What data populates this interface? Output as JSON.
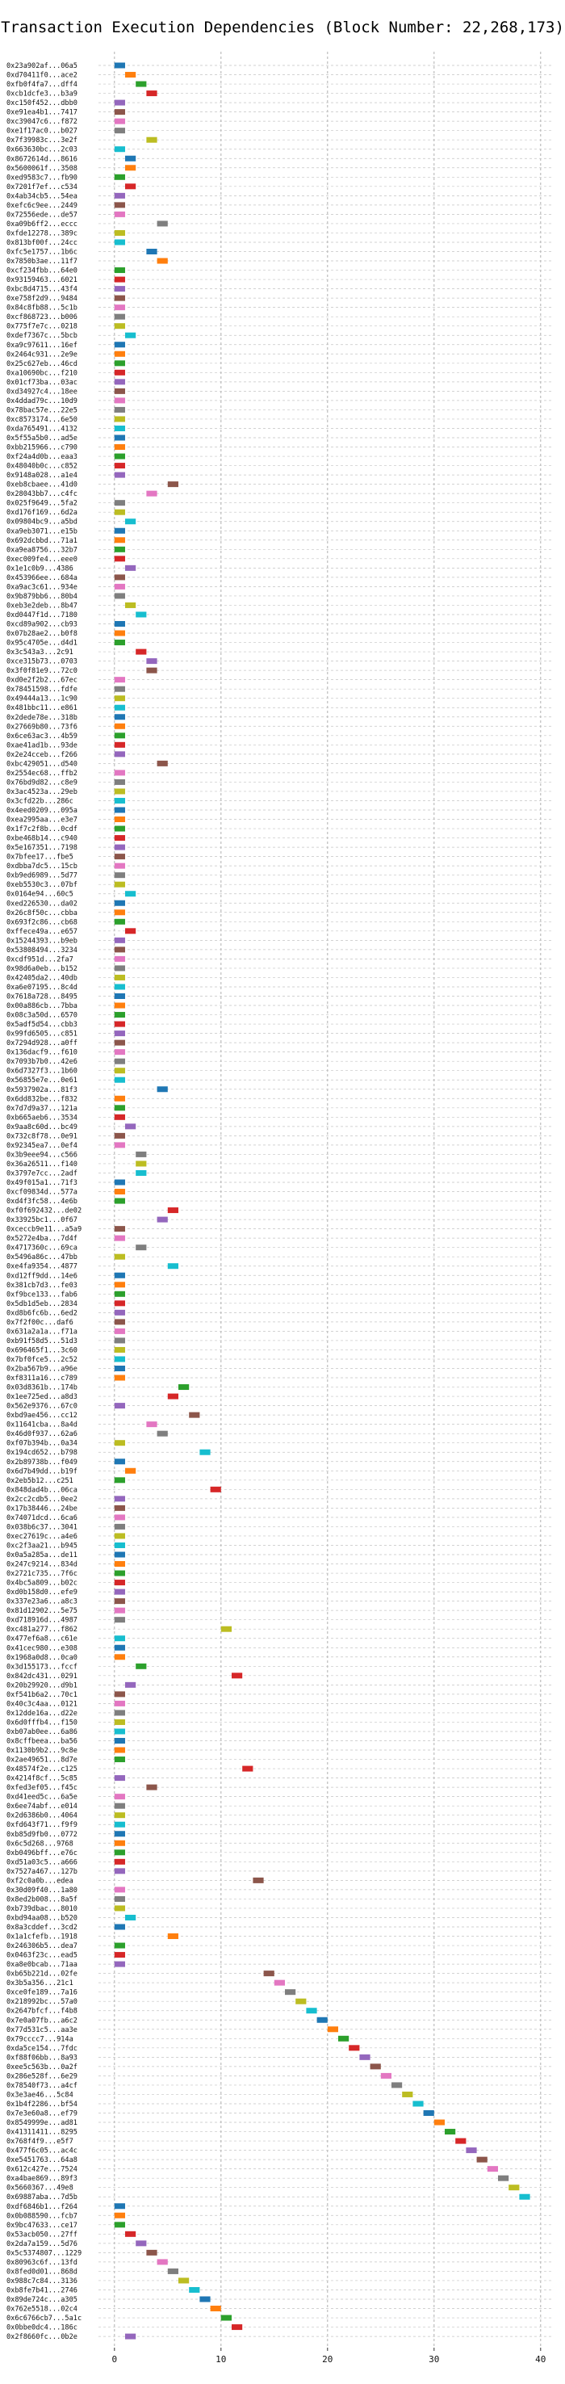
{
  "chart_data": {
    "type": "bar",
    "orientation": "horizontal",
    "title": "Transaction Execution Dependencies (Block Number: 22,268,173)",
    "xlabel": "",
    "ylabel": "",
    "xlim": [
      -1.5,
      41
    ],
    "x_ticks": [
      0,
      10,
      20,
      30,
      40
    ],
    "grid": true,
    "bar_width": 1,
    "palette": [
      "#1f77b4",
      "#ff7f0e",
      "#2ca02c",
      "#d62728",
      "#9467bd",
      "#8c564b",
      "#e377c2",
      "#7f7f7f",
      "#bcbd22",
      "#17becf"
    ],
    "categories": [
      "0x23a902af...06a5",
      "0xd70411f0...ace2",
      "0xfb0f4fa7...dff4",
      "0xcb1dcfe3...b3a9",
      "0xc150f452...dbb0",
      "0xe91ea4b1...7417",
      "0xc39047c6...f872",
      "0xe1f17ac0...b027",
      "0x7f39983c...3e2f",
      "0x663630bc...2c03",
      "0x8672614d...8616",
      "0x5600061f...3508",
      "0xed9583c7...fb90",
      "0x7201f7ef...c534",
      "0x4ab34cb5...54ea",
      "0xefc6c9ee...2449",
      "0x72556ede...de57",
      "0xa09b6ff2...eccc",
      "0xfde12278...389c",
      "0x813bf00f...24cc",
      "0xfc5e1757...1b6c",
      "0x7850b3ae...11f7",
      "0xcf234fbb...64e0",
      "0x93159463...6021",
      "0xbc8d4715...43f4",
      "0xe758f2d9...9484",
      "0x84c8fb88...5c1b",
      "0xcf868723...b006",
      "0x775f7e7c...0218",
      "0xdef7367c...5bcb",
      "0xa9c97611...16ef",
      "0x2464c931...2e9e",
      "0x25c627eb...46cd",
      "0xa10690bc...f210",
      "0x01cf73ba...03ac",
      "0xd34927c4...18ee",
      "0x4ddad79c...10d9",
      "0x78bac57e...22e5",
      "0xc8573174...6e50",
      "0xda765491...4132",
      "0x5f55a5b0...ad5e",
      "0xbb215966...c790",
      "0xf24a4d0b...eaa3",
      "0x48040b0c...c852",
      "0x9148a028...a1e4",
      "0xeb8cbaee...41d0",
      "0x28043bb7...c4fc",
      "0x025f9649...5fa2",
      "0xd176f169...6d2a",
      "0x09804bc9...a5bd",
      "0xa9eb3071...e15b",
      "0x692dcbbd...71a1",
      "0xa9ea8756...32b7",
      "0xec009fe4...eee0",
      "0x1e1c0b9...4386",
      "0x453966ee...684a",
      "0xa9ac3c61...934e",
      "0x9b879bb6...80b4",
      "0xeb3e2deb...8b47",
      "0xd0447f1d...7180",
      "0xcd89a902...cb93",
      "0x07b28ae2...b0f8",
      "0x95c4705e...d4d1",
      "0x3c543a3...2c91",
      "0xce315b73...0703",
      "0x3f0f81e9...72c0",
      "0xd0e2f2b2...67ec",
      "0x78451598...fdfe",
      "0x49444a13...1c90",
      "0x481bbc11...e861",
      "0x2dede78e...318b",
      "0x27669b80...73f6",
      "0x6ce63ac3...4b59",
      "0xae41ad1b...93de",
      "0x2e24cceb...f266",
      "0xbc429051...d540",
      "0x2554ec68...ffb2",
      "0x76bd9d82...c8e9",
      "0x3ac4523a...29eb",
      "0x3cfd22b...286c",
      "0x4eed0209...095a",
      "0xea2995aa...e3e7",
      "0x1f7c2f8b...0cdf",
      "0xbe468b14...c940",
      "0x5e167351...7198",
      "0x7bfee17...fbe5",
      "0xdbba7dc5...15cb",
      "0xb9ed6989...5d77",
      "0xeb5530c3...07bf",
      "0x0164e94...60c5",
      "0xed226530...da02",
      "0x26c8f50c...cbba",
      "0x693f2c86...cb68",
      "0xffece49a...e657",
      "0x15244393...b9eb",
      "0x53808494...3234",
      "0xcdf951d...2fa7",
      "0x98d6a0eb...b152",
      "0x42405da2...40db",
      "0xa6e07195...8c4d",
      "0x7618a728...8495",
      "0x00a886cb...7bba",
      "0x08c3a50d...6570",
      "0x5adf5d54...cbb3",
      "0x99fd6505...c851",
      "0x7294d928...a0ff",
      "0x136dacf9...f610",
      "0x7093b7b0...42e6",
      "0x6d7327f3...1b60",
      "0x56855e7e...0e61",
      "0x5937902a...81f3",
      "0x6dd832be...f832",
      "0x7d7d9a37...121a",
      "0xb665aeb6...3534",
      "0x9aa8c60d...bc49",
      "0x732c8f78...0e91",
      "0x92345ea7...0ef4",
      "0x3b9eee94...c566",
      "0x36a26511...f140",
      "0x3797e7cc...2adf",
      "0x49f015a1...71f3",
      "0xcf09834d...577a",
      "0xd4f3fc58...4e6b",
      "0xf0f692432...de02",
      "0x33925bc1...0f67",
      "0xceccb9e11...a5a9",
      "0x5272e4ba...7d4f",
      "0x4717360c...69ca",
      "0x5496a86c...47bb",
      "0xe4fa9354...4877",
      "0xd12ff9dd...14e6",
      "0x381cb7d3...fe03",
      "0xf9bce133...fab6",
      "0x5db1d5eb...2834",
      "0xd8b6fc6b...6ed2",
      "0x7f2f00c...daf6",
      "0x631a2a1a...f71a",
      "0xb91f58d5...51d3",
      "0x696465f1...3c60",
      "0x7bf0fce5...2c52",
      "0x2ba567b9...a96e",
      "0xf8311a16...c789",
      "0x03d8361b...174b",
      "0x1ee725ed...a8d3",
      "0x562e9376...67c0",
      "0xbd9ae456...cc12",
      "0x11641cba...8a4d",
      "0x46d0f937...62a6",
      "0xf07b394b...0a34",
      "0x194cd652...b798",
      "0x2b89738b...f049",
      "0x6d7b49dd...b19f",
      "0x2eb5b12...c251",
      "0x848dad4b...06ca",
      "0x2cc2cdb5...0ee2",
      "0x17b38446...24be",
      "0x74071dcd...6ca6",
      "0x038b6c37...3041",
      "0xec27619c...a4e6",
      "0xc2f3aa21...b945",
      "0x0a5a285a...de11",
      "0x247c9214...834d",
      "0x2721c735...7f6c",
      "0x4bc5a809...b02c",
      "0xd0b158d0...efe9",
      "0x337e23a6...a8c3",
      "0x81d12902...5e75",
      "0xd718916d...4987",
      "0xc481a277...f862",
      "0x477ef6a8...c61e",
      "0x41cec980...e308",
      "0x1968a0d8...0ca0",
      "0x3d155173...fccf",
      "0x842dc431...0291",
      "0x20b29920...d9b1",
      "0xf541b6a2...70c1",
      "0x40c3c4aa...0121",
      "0x12dde16a...d22e",
      "0x6d0fffb4...f150",
      "0xb07ab0ee...6a86",
      "0x8cffbeea...ba56",
      "0x1130b9b2...9c8e",
      "0x2ae49651...8d7e",
      "0x48574f2e...c125",
      "0x4214f8cf...5c85",
      "0xfed3ef05...f45c",
      "0xd41eed5c...6a5e",
      "0x6ee74abf...e014",
      "0x2d6386b0...4064",
      "0xfd643f71...f9f9",
      "0xb85d9fb0...0772",
      "0x6c5d268...9768",
      "0xb0496bff...e76c",
      "0xd51a03c5...a666",
      "0x7527a467...127b",
      "0xf2c0a0b...edea",
      "0x30d09f40...1a80",
      "0x8ed2b008...8a5f",
      "0xb739dbac...8010",
      "0xbd94aa08...b520",
      "0x8a3cddef...3cd2",
      "0x1a1cfefb...1918",
      "0x246306b5...dea7",
      "0x0463f23c...ead5",
      "0xa8e0bcab...71aa",
      "0xb65b221d...02fe",
      "0x3b5a356...21c1",
      "0xce0fe189...7a16",
      "0x218992bc...57a0",
      "0x2647bfcf...f4b8",
      "0x7e0a07fb...a6c2",
      "0x77d531c5...aa3e",
      "0x79cccc7...914a",
      "0xda5ce154...7fdc",
      "0xf88f06bb...8a93",
      "0xee5c563b...0a2f",
      "0x286e528f...6e29",
      "0x78540f73...a4cf",
      "0x3e3ae46...5c84",
      "0x1b4f2286...bf54",
      "0x7e3e60a8...ef79",
      "0x8549999e...ad81",
      "0x41311411...8295",
      "0x768f4f9...e5f7",
      "0x477f6c05...ac4c",
      "0xe5451763...64a8",
      "0x612c427e...7524",
      "0xa4bae869...89f3",
      "0x5660367...49e8",
      "0x69887aba...7d5b",
      "0xdf6846b1...f264",
      "0x0b088590...fcb7",
      "0x9bc47633...ce17",
      "0x53acb050...27ff",
      "0x2da7a159...5d76",
      "0x5c5374807...1229",
      "0x80963c6f...13fd",
      "0x8fed0d01...868d",
      "0x988c7c84...3136",
      "0xb8fe7b41...2746",
      "0x89de724c...a305",
      "0x762e5518...02c4",
      "0x6c6766cb7...5a1c",
      "0x0bbe0dc4...186c",
      "0x2f8660fc...0b2e"
    ],
    "starts": [
      0,
      1,
      2,
      3,
      0,
      0,
      0,
      0,
      3,
      0,
      1,
      1,
      0,
      1,
      0,
      0,
      0,
      4,
      0,
      0,
      3,
      4,
      0,
      0,
      0,
      0,
      0,
      0,
      0,
      1,
      0,
      0,
      0,
      0,
      0,
      0,
      0,
      0,
      0,
      0,
      0,
      0,
      0,
      0,
      0,
      5,
      3,
      0,
      0,
      1,
      0,
      0,
      0,
      0,
      1,
      0,
      0,
      0,
      1,
      2,
      0,
      0,
      0,
      2,
      3,
      3,
      0,
      0,
      0,
      0,
      0,
      0,
      0,
      0,
      0,
      4,
      0,
      0,
      0,
      0,
      0,
      0,
      0,
      0,
      0,
      0,
      0,
      0,
      0,
      1,
      0,
      0,
      0,
      1,
      0,
      0,
      0,
      0,
      0,
      0,
      0,
      0,
      0,
      0,
      0,
      0,
      0,
      0,
      0,
      0,
      4,
      0,
      0,
      0,
      1,
      0,
      0,
      2,
      2,
      2,
      0,
      0,
      0,
      5,
      4,
      0,
      0,
      2,
      0,
      5,
      0,
      0,
      0,
      0,
      0,
      0,
      0,
      0,
      0,
      0,
      0,
      0,
      6,
      5,
      0,
      7,
      3,
      4,
      0,
      8,
      0,
      1,
      0,
      9,
      0,
      0,
      0,
      0,
      0,
      0,
      0,
      0,
      0,
      0,
      0,
      0,
      0,
      0,
      10,
      0,
      0,
      0,
      2,
      11,
      1,
      0,
      0,
      0,
      0,
      0,
      0,
      0,
      0,
      12,
      0,
      3,
      0,
      0,
      0,
      0,
      0,
      0,
      0,
      0,
      0,
      13,
      0,
      0,
      0,
      1,
      0,
      5,
      0,
      0,
      0,
      14,
      15,
      16,
      17,
      18,
      19,
      20,
      21,
      22,
      23,
      24,
      25,
      26,
      27,
      28,
      29,
      30,
      31,
      32,
      33,
      34,
      35,
      36,
      37,
      38,
      0,
      0,
      0,
      1,
      2,
      3,
      4,
      5,
      6,
      7,
      8,
      9,
      10,
      11,
      1
    ],
    "durations": [
      1,
      1,
      1,
      1,
      1,
      1,
      1,
      1,
      1,
      1,
      1,
      1,
      1,
      1,
      1,
      1,
      1,
      1,
      1,
      1,
      1,
      1,
      1,
      1,
      1,
      1,
      1,
      1,
      1,
      1,
      1,
      1,
      1,
      1,
      1,
      1,
      1,
      1,
      1,
      1,
      1,
      1,
      1,
      1,
      1,
      1,
      1,
      1,
      1,
      1,
      1,
      1,
      1,
      1,
      1,
      1,
      1,
      1,
      1,
      1,
      1,
      1,
      1,
      1,
      1,
      1,
      1,
      1,
      1,
      1,
      1,
      1,
      1,
      1,
      1,
      1,
      1,
      1,
      1,
      1,
      1,
      1,
      1,
      1,
      1,
      1,
      1,
      1,
      1,
      1,
      1,
      1,
      1,
      1,
      1,
      1,
      1,
      1,
      1,
      1,
      1,
      1,
      1,
      1,
      1,
      1,
      1,
      1,
      1,
      1,
      1,
      1,
      1,
      1,
      1,
      1,
      1,
      1,
      1,
      1,
      1,
      1,
      1,
      1,
      1,
      1,
      1,
      1,
      1,
      1,
      1,
      1,
      1,
      1,
      1,
      1,
      1,
      1,
      1,
      1,
      1,
      1,
      1,
      1,
      1,
      1,
      1,
      1,
      1,
      1,
      1,
      1,
      1,
      1,
      1,
      1,
      1,
      1,
      1,
      1,
      1,
      1,
      1,
      1,
      1,
      1,
      1,
      1,
      1,
      1,
      1,
      1,
      1,
      1,
      1,
      1,
      1,
      1,
      1,
      1,
      1,
      1,
      1,
      1,
      1,
      1,
      1,
      1,
      1,
      1,
      1,
      1,
      1,
      1,
      1,
      1,
      1,
      1,
      1,
      1,
      1,
      1,
      1,
      1,
      1,
      1,
      1,
      1,
      1,
      1,
      1,
      1,
      1,
      1,
      1,
      1,
      1,
      1,
      1,
      1,
      1,
      1,
      1,
      1,
      1,
      1,
      1,
      1,
      1,
      1,
      1,
      1,
      1,
      1,
      1,
      1,
      1,
      1,
      1,
      1,
      1,
      1,
      1,
      1,
      1,
      1,
      1,
      1,
      1,
      1,
      1,
      1,
      1,
      1,
      1
    ]
  }
}
